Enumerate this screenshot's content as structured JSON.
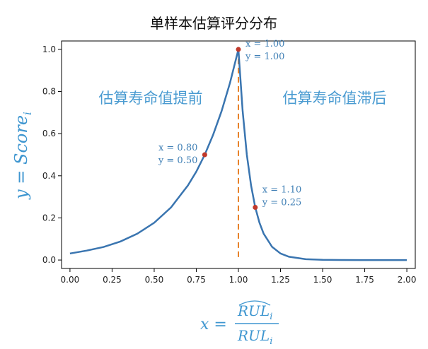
{
  "chart_data": {
    "type": "line",
    "title": "单样本估算评分分布",
    "ylabel": "y = Score_i",
    "xlabel": {
      "lhs": "x =",
      "numerator": "RUL_i (hat)",
      "denominator": "RUL_i"
    },
    "xlim": [
      -0.05,
      2.05
    ],
    "ylim": [
      -0.04,
      1.04
    ],
    "xticks": [
      "0.00",
      "0.25",
      "0.50",
      "0.75",
      "1.00",
      "1.25",
      "1.50",
      "1.75",
      "2.00"
    ],
    "yticks": [
      "0.0",
      "0.2",
      "0.4",
      "0.6",
      "0.8",
      "1.0"
    ],
    "regions": {
      "left": "估算寿命值提前",
      "right": "估算寿命值滞后"
    },
    "series": [
      {
        "color": "#3a75b0",
        "x": [
          0.0,
          0.1,
          0.2,
          0.3,
          0.4,
          0.5,
          0.6,
          0.7,
          0.75,
          0.8,
          0.85,
          0.9,
          0.95,
          1.0,
          1.025,
          1.05,
          1.075,
          1.1,
          1.125,
          1.15,
          1.2,
          1.25,
          1.3,
          1.4,
          1.5,
          1.6,
          1.75,
          2.0
        ],
        "y": [
          0.031,
          0.045,
          0.062,
          0.088,
          0.125,
          0.177,
          0.25,
          0.354,
          0.42,
          0.5,
          0.595,
          0.707,
          0.841,
          1.0,
          0.707,
          0.5,
          0.354,
          0.25,
          0.177,
          0.125,
          0.0625,
          0.031,
          0.0156,
          0.004,
          0.001,
          0.0002,
          0.0,
          0.0
        ]
      }
    ],
    "vline": {
      "x": 1.0,
      "color": "#e8822a",
      "style": "dashed"
    },
    "points": [
      {
        "x": 0.8,
        "y": 0.5,
        "label_x": "x = 0.80",
        "label_y": "y = 0.50"
      },
      {
        "x": 1.0,
        "y": 1.0,
        "label_x": "x = 1.00",
        "label_y": "y = 1.00"
      },
      {
        "x": 1.1,
        "y": 0.25,
        "label_x": "x = 1.10",
        "label_y": "y = 0.25"
      }
    ],
    "grid": false
  }
}
